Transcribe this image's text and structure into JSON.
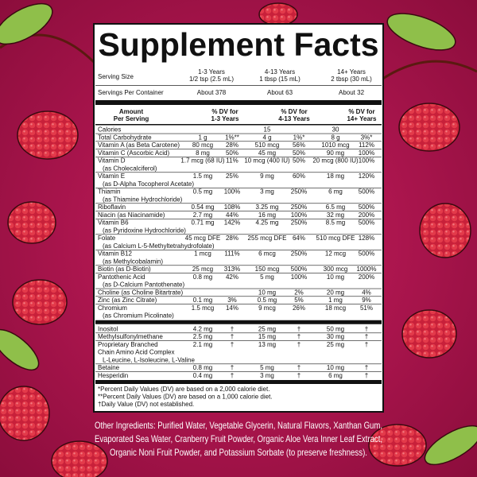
{
  "title": "Supplement Facts",
  "serving_size": {
    "label": "Serving Size",
    "columns": [
      [
        "1-3 Years",
        "1/2 tsp (2.5 mL)"
      ],
      [
        "4-13 Years",
        "1 tbsp (15 mL)"
      ],
      [
        "14+ Years",
        "2 tbsp (30 mL)"
      ]
    ]
  },
  "servings_per_container": {
    "label": "Servings Per Container",
    "values": [
      "About 378",
      "About 63",
      "About 32"
    ]
  },
  "table": {
    "header": {
      "amount": [
        "Amount",
        "Per Serving"
      ],
      "dv": [
        [
          "% DV for",
          "1-3 Years"
        ],
        [
          "% DV for",
          "4-13 Years"
        ],
        [
          "% DV for",
          "14+ Years"
        ]
      ]
    },
    "sections": [
      {
        "rows": [
          {
            "name": [
              "Calories"
            ],
            "cells": [
              null,
              null,
              "15",
              null,
              "30",
              null
            ]
          },
          {
            "name": [
              "Total Carbohydrate"
            ],
            "cells": [
              "1 g",
              "1%**",
              "4 g",
              "1%*",
              "8 g",
              "3%*"
            ]
          },
          {
            "name": [
              "Vitamin A (as Beta Carotene)"
            ],
            "cells": [
              "80 mcg",
              "28%",
              "510 mcg",
              "56%",
              "1010 mcg",
              "112%"
            ]
          },
          {
            "name": [
              "Vitamin C (Ascorbic Acid)"
            ],
            "cells": [
              "8 mg",
              "50%",
              "45 mg",
              "50%",
              "90 mg",
              "100%"
            ]
          },
          {
            "name": [
              "Vitamin D"
            ],
            "detail": [
              "(as Cholecalciferol)"
            ],
            "cells": [
              "1.7 mcg (68 IU)",
              "11%",
              "10 mcg (400 IU)",
              "50%",
              "20 mcg (800 IU)",
              "100%"
            ]
          },
          {
            "name": [
              "Vitamin E"
            ],
            "detail": [
              "(as D-Alpha Tocopherol Acetate)"
            ],
            "cells": [
              "1.5 mg",
              "25%",
              "9 mg",
              "60%",
              "18 mg",
              "120%"
            ]
          },
          {
            "name": [
              "Thiamin"
            ],
            "detail": [
              "(as Thiamine Hydrochloride)"
            ],
            "cells": [
              "0.5 mg",
              "100%",
              "3 mg",
              "250%",
              "6 mg",
              "500%"
            ]
          },
          {
            "name": [
              "Riboflavin"
            ],
            "cells": [
              "0.54 mg",
              "108%",
              "3.25 mg",
              "250%",
              "6.5 mg",
              "500%"
            ]
          },
          {
            "name": [
              "Niacin (as Niacinamide)"
            ],
            "cells": [
              "2.7 mg",
              "44%",
              "16 mg",
              "100%",
              "32 mg",
              "200%"
            ]
          },
          {
            "name": [
              "Vitamin B6"
            ],
            "detail": [
              "(as Pyridoxine Hydrochloride)"
            ],
            "cells": [
              "0.71 mg",
              "142%",
              "4.25 mg",
              "250%",
              "8.5 mg",
              "500%"
            ]
          },
          {
            "name": [
              "Folate"
            ],
            "detail": [
              "(as Calcium L-5-Methyltetrahydrofolate)"
            ],
            "cells": [
              "45 mcg DFE",
              "28%",
              "255 mcg DFE",
              "64%",
              "510 mcg DFE",
              "128%"
            ]
          },
          {
            "name": [
              "Vitamin B12"
            ],
            "detail": [
              "(as Methylcobalamin)"
            ],
            "cells": [
              "1 mcg",
              "111%",
              "6 mcg",
              "250%",
              "12 mcg",
              "500%"
            ]
          },
          {
            "name": [
              "Biotin (as D-Biotin)"
            ],
            "cells": [
              "25 mcg",
              "313%",
              "150 mcg",
              "500%",
              "300 mcg",
              "1000%"
            ]
          },
          {
            "name": [
              "Pantothenic Acid"
            ],
            "detail": [
              "(as D-Calcium Pantothenate)"
            ],
            "cells": [
              "0.8 mg",
              "42%",
              "5 mg",
              "100%",
              "10 mg",
              "200%"
            ]
          },
          {
            "name": [
              "Choline (as Choline Bitartrate)"
            ],
            "cells": [
              null,
              null,
              "10 mg",
              "2%",
              "20 mg",
              "4%"
            ]
          },
          {
            "name": [
              "Zinc (as Zinc Citrate)"
            ],
            "cells": [
              "0.1 mg",
              "3%",
              "0.5 mg",
              "5%",
              "1 mg",
              "9%"
            ]
          },
          {
            "name": [
              "Chromium"
            ],
            "detail": [
              "(as Chromium Picolinate)"
            ],
            "cells": [
              "1.5 mcg",
              "14%",
              "9 mcg",
              "26%",
              "18 mcg",
              "51%"
            ]
          }
        ]
      },
      {
        "rows": [
          {
            "name": [
              "Inositol"
            ],
            "cells": [
              "4.2 mg",
              "†",
              "25 mg",
              "†",
              "50 mg",
              "†"
            ]
          },
          {
            "name": [
              "Methylsulfonylmethane"
            ],
            "cells": [
              "2.5 mg",
              "†",
              "15 mg",
              "†",
              "30 mg",
              "†"
            ]
          },
          {
            "name": [
              "Proprietary Branched",
              "Chain Amino Acid Complex"
            ],
            "detail": [
              "L-Leucine, L-Isoleucine, L-Valine"
            ],
            "cells": [
              "2.1 mg",
              "†",
              "13 mg",
              "†",
              "25 mg",
              "†"
            ]
          },
          {
            "name": [
              "Betaine"
            ],
            "cells": [
              "0.8 mg",
              "†",
              "5 mg",
              "†",
              "10 mg",
              "†"
            ]
          },
          {
            "name": [
              "Hesperidin"
            ],
            "cells": [
              "0.4 mg",
              "†",
              "3 mg",
              "†",
              "6 mg",
              "†"
            ]
          }
        ]
      }
    ]
  },
  "footnotes": [
    "*Percent Daily Values (DV) are based on a 2,000 calorie diet.",
    "**Percent Daily Values (DV) are based on a 1,000 calorie diet.",
    "†Daily Value (DV) not established."
  ],
  "ingredients": [
    "Other Ingredients: Purified Water, Vegetable Glycerin, Natural Flavors, Xanthan Gum,",
    "Evaporated Sea Water, Cranberry Fruit Powder, Organic Aloe Vera Inner Leaf Extract,",
    "Organic Noni Fruit Powder, and Potassium Sorbate (to preserve freshness)."
  ]
}
